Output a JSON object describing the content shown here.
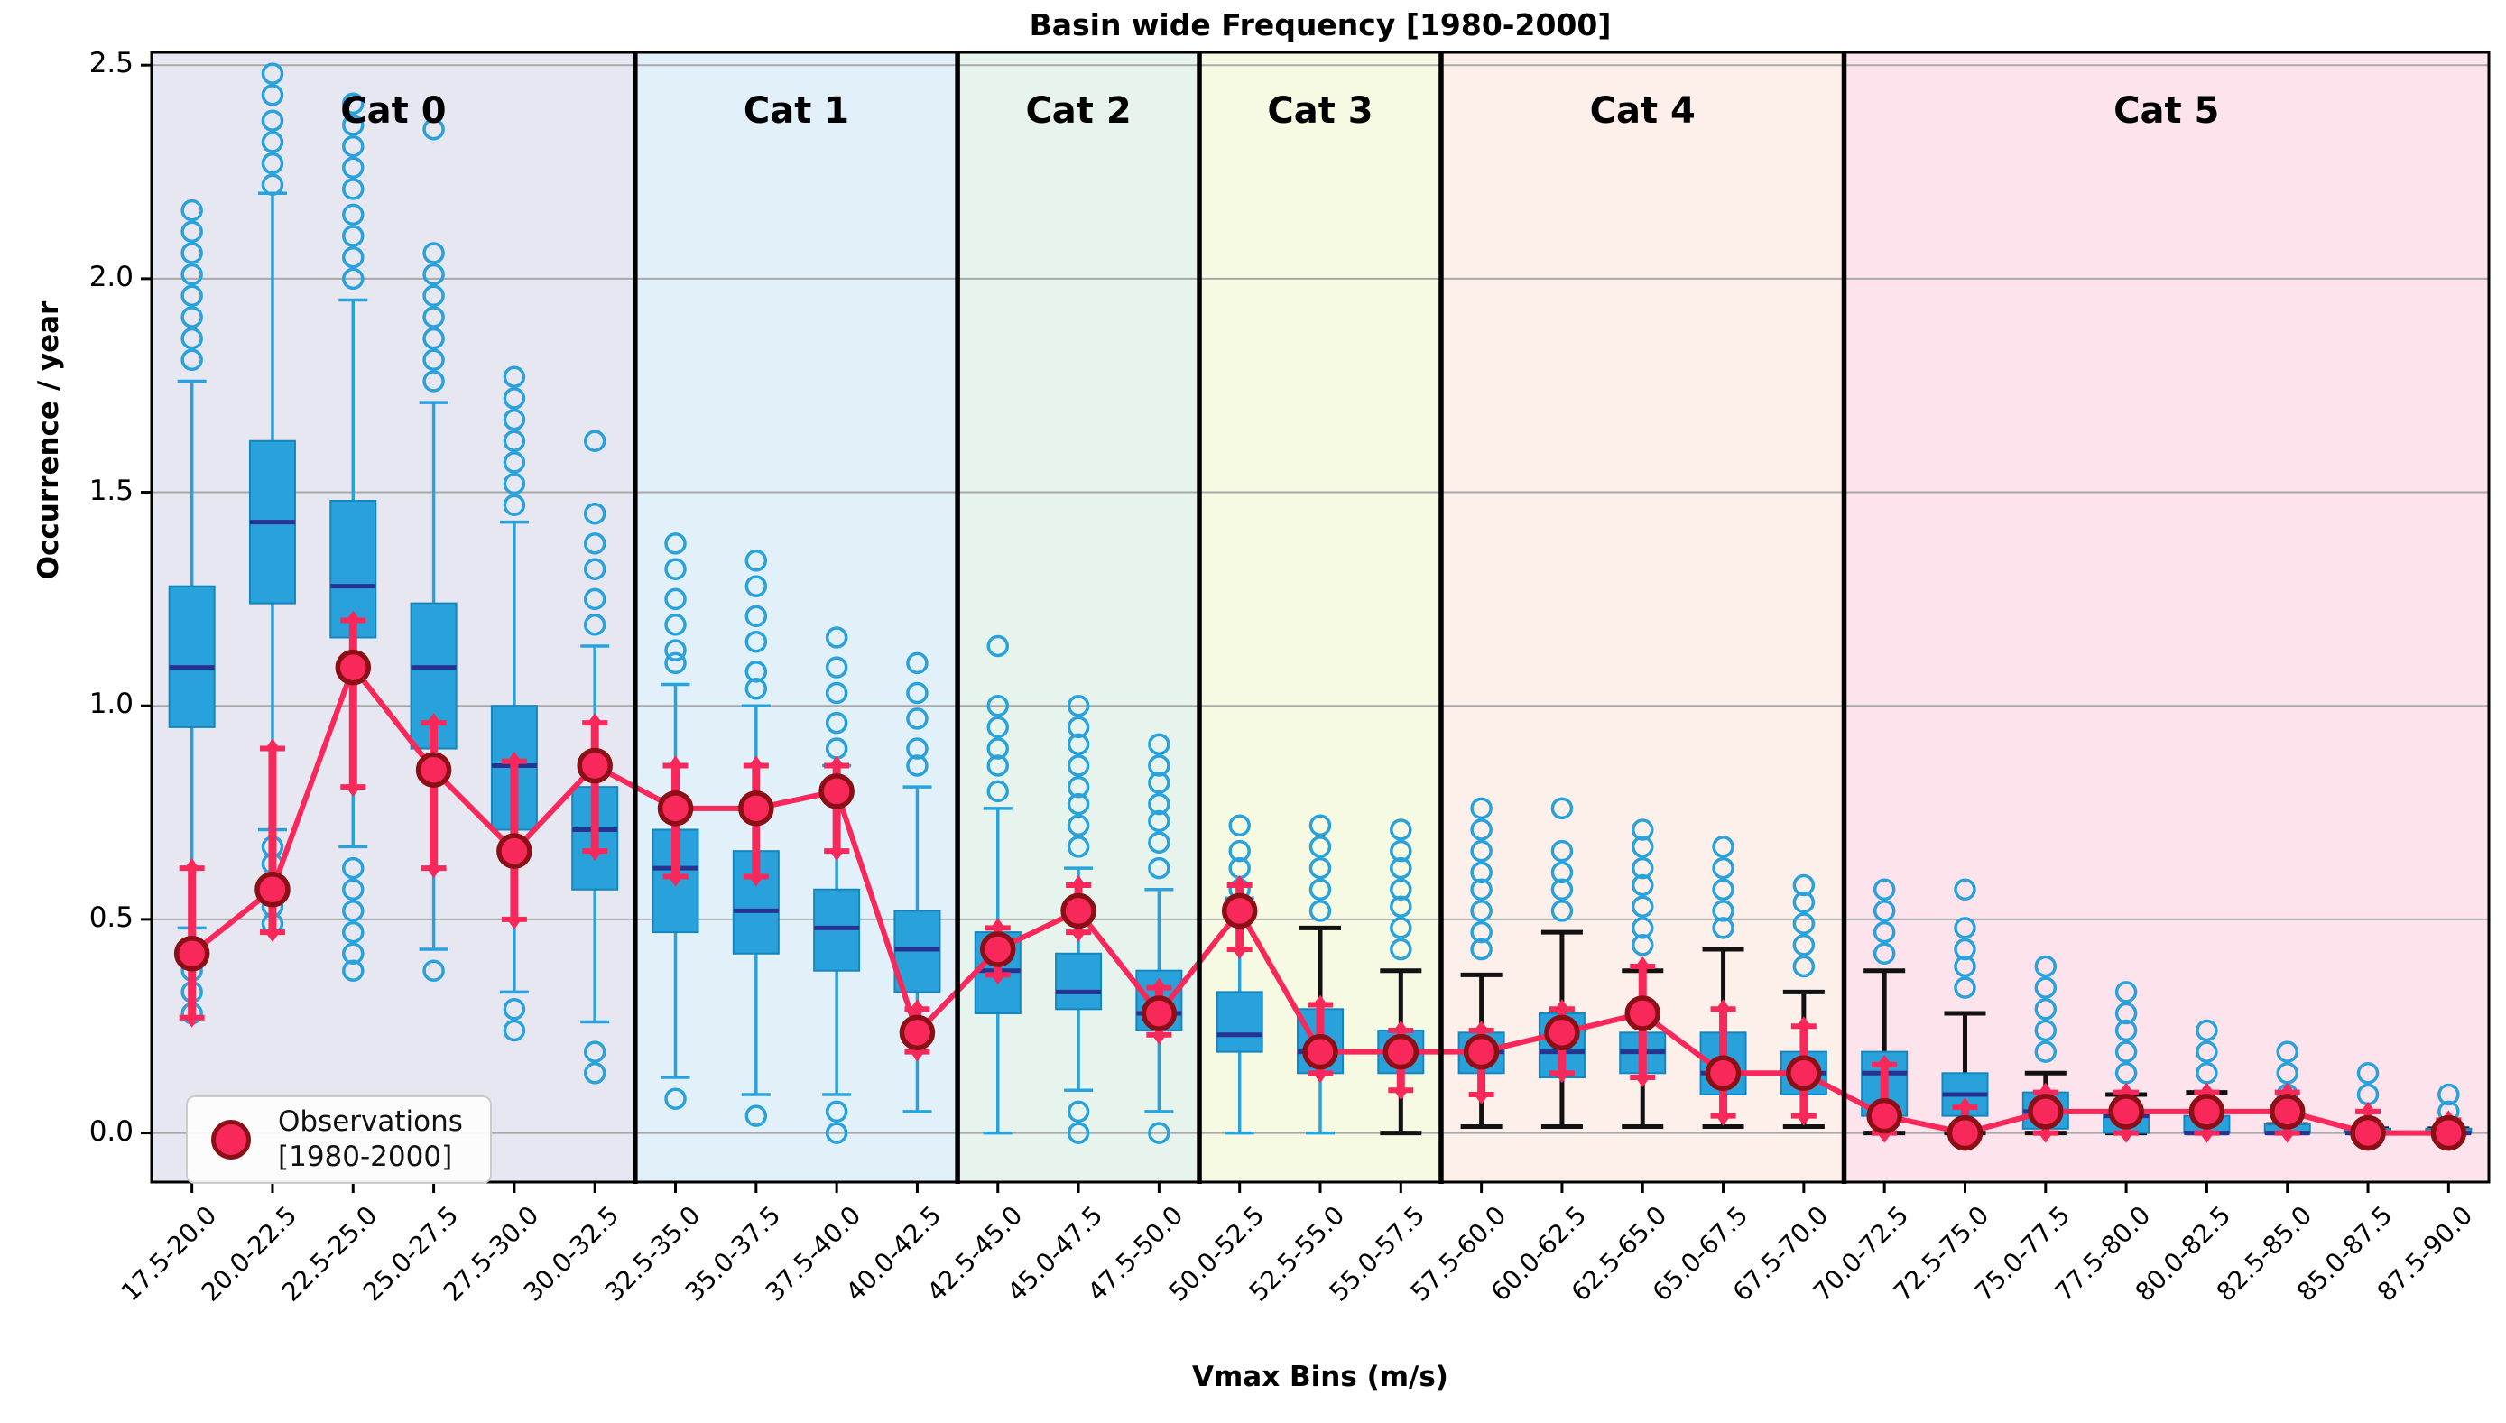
{
  "title": "Basin wide Frequency [1980-2000]",
  "ylabel": "Occurrence / year",
  "xlabel": "Vmax Bins (m/s)",
  "legend": {
    "line1": "Observations",
    "line2": "[1980-2000]"
  },
  "colors": {
    "figure_bg": "#ffffff",
    "grid": "#a9a9a9",
    "axis": "#000000",
    "box_fill": "#29a2dc",
    "box_edge": "#1486bf",
    "median": "#28328f",
    "whisker_blue": "#29a2dc",
    "whisker_black": "#111111",
    "outlier_edge": "#29a2dc",
    "obs_fill": "#f8285a",
    "obs_edge": "#8b0f15",
    "obs_line": "#f8285a",
    "band_divider": "#000000"
  },
  "chart_data": {
    "type": "box",
    "title": "Basin wide Frequency [1980-2000]",
    "xlabel": "Vmax Bins (m/s)",
    "ylabel": "Occurrence / year",
    "ylim": [
      -0.115,
      2.53
    ],
    "yticks": [
      "0.0",
      "0.5",
      "1.0",
      "1.5",
      "2.0",
      "2.5"
    ],
    "ytick_values": [
      0.0,
      0.5,
      1.0,
      1.5,
      2.0,
      2.5
    ],
    "grid": true,
    "legend_position": "lower left",
    "obs_series_name": "Observations [1980-2000]",
    "categories": [
      {
        "label": "Cat 0",
        "bins": 6,
        "color": "#e7e7f1"
      },
      {
        "label": "Cat 1",
        "bins": 4,
        "color": "#e2f0fa"
      },
      {
        "label": "Cat 2",
        "bins": 3,
        "color": "#e6f4ed"
      },
      {
        "label": "Cat 3",
        "bins": 3,
        "color": "#f7fae3"
      },
      {
        "label": "Cat 4",
        "bins": 5,
        "color": "#fdefea"
      },
      {
        "label": "Cat 5",
        "bins": 8,
        "color": "#fce3ec"
      }
    ],
    "bins": [
      {
        "label": "17.5-20.0",
        "whisker_low": 0.48,
        "q1": 0.95,
        "median": 1.09,
        "q3": 1.28,
        "whisker_high": 1.76,
        "outliers_high": [
          1.81,
          1.86,
          1.91,
          1.96,
          2.01,
          2.06,
          2.11,
          2.16
        ],
        "outliers_low": [
          0.28,
          0.33,
          0.38
        ],
        "obs": 0.42,
        "obs_err": [
          0.27,
          0.62
        ],
        "wt": "blue",
        "wb": "blue"
      },
      {
        "label": "20.0-22.5",
        "whisker_low": 0.71,
        "q1": 1.24,
        "median": 1.43,
        "q3": 1.62,
        "whisker_high": 2.2,
        "outliers_high": [
          2.22,
          2.27,
          2.32,
          2.37,
          2.43,
          2.48
        ],
        "outliers_low": [
          0.49,
          0.53,
          0.63,
          0.67
        ],
        "obs": 0.57,
        "obs_err": [
          0.47,
          0.9
        ],
        "wt": "blue",
        "wb": "blue"
      },
      {
        "label": "22.5-25.0",
        "whisker_low": 0.67,
        "q1": 1.16,
        "median": 1.28,
        "q3": 1.48,
        "whisker_high": 1.95,
        "outliers_high": [
          2.0,
          2.05,
          2.1,
          2.15,
          2.21,
          2.26,
          2.31,
          2.36,
          2.41
        ],
        "outliers_low": [
          0.38,
          0.42,
          0.47,
          0.52,
          0.57,
          0.62
        ],
        "obs": 1.09,
        "obs_err": [
          0.81,
          1.2
        ],
        "wt": "blue",
        "wb": "blue"
      },
      {
        "label": "25.0-27.5",
        "whisker_low": 0.43,
        "q1": 0.9,
        "median": 1.09,
        "q3": 1.24,
        "whisker_high": 1.71,
        "outliers_high": [
          1.76,
          1.81,
          1.86,
          1.91,
          1.96,
          2.01,
          2.06,
          2.35
        ],
        "outliers_low": [
          0.38
        ],
        "obs": 0.85,
        "obs_err": [
          0.62,
          0.96
        ],
        "wt": "blue",
        "wb": "blue"
      },
      {
        "label": "27.5-30.0",
        "whisker_low": 0.33,
        "q1": 0.71,
        "median": 0.86,
        "q3": 1.0,
        "whisker_high": 1.43,
        "outliers_high": [
          1.47,
          1.52,
          1.57,
          1.62,
          1.67,
          1.72,
          1.77
        ],
        "outliers_low": [
          0.24,
          0.29
        ],
        "obs": 0.66,
        "obs_err": [
          0.5,
          0.87
        ],
        "wt": "blue",
        "wb": "blue"
      },
      {
        "label": "30.0-32.5",
        "whisker_low": 0.26,
        "q1": 0.57,
        "median": 0.71,
        "q3": 0.81,
        "whisker_high": 1.14,
        "outliers_high": [
          1.19,
          1.25,
          1.32,
          1.38,
          1.45,
          1.62
        ],
        "outliers_low": [
          0.14,
          0.19
        ],
        "obs": 0.86,
        "obs_err": [
          0.66,
          0.96
        ],
        "wt": "blue",
        "wb": "blue"
      },
      {
        "label": "32.5-35.0",
        "whisker_low": 0.13,
        "q1": 0.47,
        "median": 0.62,
        "q3": 0.71,
        "whisker_high": 1.05,
        "outliers_high": [
          1.1,
          1.13,
          1.19,
          1.25,
          1.32,
          1.38
        ],
        "outliers_low": [
          0.08
        ],
        "obs": 0.76,
        "obs_err": [
          0.6,
          0.86
        ],
        "wt": "blue",
        "wb": "blue"
      },
      {
        "label": "35.0-37.5",
        "whisker_low": 0.09,
        "q1": 0.42,
        "median": 0.52,
        "q3": 0.66,
        "whisker_high": 1.0,
        "outliers_high": [
          1.04,
          1.08,
          1.15,
          1.21,
          1.28,
          1.34
        ],
        "outliers_low": [
          0.04
        ],
        "obs": 0.76,
        "obs_err": [
          0.6,
          0.86
        ],
        "wt": "blue",
        "wb": "blue"
      },
      {
        "label": "37.5-40.0",
        "whisker_low": 0.09,
        "q1": 0.38,
        "median": 0.48,
        "q3": 0.57,
        "whisker_high": 0.86,
        "outliers_high": [
          0.9,
          0.96,
          1.03,
          1.09,
          1.16
        ],
        "outliers_low": [
          0.0,
          0.05
        ],
        "obs": 0.8,
        "obs_err": [
          0.66,
          0.86
        ],
        "wt": "blue",
        "wb": "blue"
      },
      {
        "label": "40.0-42.5",
        "whisker_low": 0.05,
        "q1": 0.33,
        "median": 0.43,
        "q3": 0.52,
        "whisker_high": 0.81,
        "outliers_high": [
          0.86,
          0.9,
          0.97,
          1.03,
          1.1
        ],
        "outliers_low": [],
        "obs": 0.235,
        "obs_err": [
          0.19,
          0.29
        ],
        "wt": "blue",
        "wb": "blue"
      },
      {
        "label": "42.5-45.0",
        "whisker_low": 0.0,
        "q1": 0.28,
        "median": 0.38,
        "q3": 0.47,
        "whisker_high": 0.76,
        "outliers_high": [
          0.8,
          0.86,
          0.9,
          0.95,
          1.0,
          1.14
        ],
        "outliers_low": [],
        "obs": 0.43,
        "obs_err": [
          0.37,
          0.48
        ],
        "wt": "blue",
        "wb": "blue"
      },
      {
        "label": "45.0-47.5",
        "whisker_low": 0.1,
        "q1": 0.29,
        "median": 0.33,
        "q3": 0.42,
        "whisker_high": 0.62,
        "outliers_high": [
          0.67,
          0.72,
          0.77,
          0.81,
          0.86,
          0.91,
          0.95,
          1.0
        ],
        "outliers_low": [
          0.0,
          0.05
        ],
        "obs": 0.52,
        "obs_err": [
          0.47,
          0.58
        ],
        "wt": "blue",
        "wb": "blue"
      },
      {
        "label": "47.5-50.0",
        "whisker_low": 0.05,
        "q1": 0.24,
        "median": 0.28,
        "q3": 0.38,
        "whisker_high": 0.57,
        "outliers_high": [
          0.62,
          0.68,
          0.73,
          0.77,
          0.82,
          0.86,
          0.91
        ],
        "outliers_low": [
          0.0
        ],
        "obs": 0.28,
        "obs_err": [
          0.23,
          0.34
        ],
        "wt": "blue",
        "wb": "blue"
      },
      {
        "label": "50.0-52.5",
        "whisker_low": 0.0,
        "q1": 0.19,
        "median": 0.23,
        "q3": 0.33,
        "whisker_high": 0.55,
        "outliers_high": [
          0.57,
          0.62,
          0.66,
          0.72
        ],
        "outliers_low": [],
        "obs": 0.52,
        "obs_err": [
          0.43,
          0.58
        ],
        "wt": "blue",
        "wb": "blue"
      },
      {
        "label": "52.5-55.0",
        "whisker_low": 0.0,
        "q1": 0.14,
        "median": 0.19,
        "q3": 0.29,
        "whisker_high": 0.48,
        "outliers_high": [
          0.52,
          0.57,
          0.62,
          0.67,
          0.72
        ],
        "outliers_low": [],
        "obs": 0.19,
        "obs_err": [
          0.14,
          0.3
        ],
        "wt": "black",
        "wb": "blue"
      },
      {
        "label": "55.0-57.5",
        "whisker_low": 0.0,
        "q1": 0.14,
        "median": 0.19,
        "q3": 0.24,
        "whisker_high": 0.38,
        "outliers_high": [
          0.43,
          0.48,
          0.53,
          0.57,
          0.62,
          0.66,
          0.71
        ],
        "outliers_low": [],
        "obs": 0.19,
        "obs_err": [
          0.1,
          0.24
        ],
        "wt": "black",
        "wb": "black"
      },
      {
        "label": "57.5-60.0",
        "whisker_low": 0.015,
        "q1": 0.14,
        "median": 0.19,
        "q3": 0.235,
        "whisker_high": 0.37,
        "outliers_high": [
          0.43,
          0.47,
          0.52,
          0.57,
          0.61,
          0.66,
          0.71,
          0.76
        ],
        "outliers_low": [],
        "obs": 0.19,
        "obs_err": [
          0.09,
          0.24
        ],
        "wt": "black",
        "wb": "black"
      },
      {
        "label": "60.0-62.5",
        "whisker_low": 0.015,
        "q1": 0.13,
        "median": 0.19,
        "q3": 0.28,
        "whisker_high": 0.47,
        "outliers_high": [
          0.52,
          0.57,
          0.61,
          0.66,
          0.76
        ],
        "outliers_low": [],
        "obs": 0.235,
        "obs_err": [
          0.14,
          0.29
        ],
        "wt": "black",
        "wb": "black"
      },
      {
        "label": "62.5-65.0",
        "whisker_low": 0.015,
        "q1": 0.14,
        "median": 0.19,
        "q3": 0.235,
        "whisker_high": 0.38,
        "outliers_high": [
          0.44,
          0.48,
          0.53,
          0.58,
          0.62,
          0.67,
          0.71
        ],
        "outliers_low": [],
        "obs": 0.28,
        "obs_err": [
          0.13,
          0.39
        ],
        "wt": "black",
        "wb": "black"
      },
      {
        "label": "65.0-67.5",
        "whisker_low": 0.015,
        "q1": 0.09,
        "median": 0.14,
        "q3": 0.235,
        "whisker_high": 0.43,
        "outliers_high": [
          0.48,
          0.52,
          0.57,
          0.62,
          0.67
        ],
        "outliers_low": [],
        "obs": 0.14,
        "obs_err": [
          0.04,
          0.29
        ],
        "wt": "black",
        "wb": "black"
      },
      {
        "label": "67.5-70.0",
        "whisker_low": 0.015,
        "q1": 0.09,
        "median": 0.14,
        "q3": 0.19,
        "whisker_high": 0.33,
        "outliers_high": [
          0.39,
          0.44,
          0.49,
          0.54,
          0.58
        ],
        "outliers_low": [],
        "obs": 0.14,
        "obs_err": [
          0.04,
          0.25
        ],
        "wt": "black",
        "wb": "black"
      },
      {
        "label": "70.0-72.5",
        "whisker_low": 0.0,
        "q1": 0.04,
        "median": 0.14,
        "q3": 0.19,
        "whisker_high": 0.38,
        "outliers_high": [
          0.42,
          0.47,
          0.52,
          0.57
        ],
        "outliers_low": [],
        "obs": 0.04,
        "obs_err": [
          0.0,
          0.16
        ],
        "wt": "black",
        "wb": "black"
      },
      {
        "label": "72.5-75.0",
        "whisker_low": 0.0,
        "q1": 0.04,
        "median": 0.09,
        "q3": 0.14,
        "whisker_high": 0.28,
        "outliers_high": [
          0.34,
          0.39,
          0.43,
          0.48,
          0.57
        ],
        "outliers_low": [],
        "obs": 0.0,
        "obs_err": [
          0.0,
          0.06
        ],
        "wt": "black",
        "wb": "black"
      },
      {
        "label": "75.0-77.5",
        "whisker_low": 0.0,
        "q1": 0.01,
        "median": 0.05,
        "q3": 0.095,
        "whisker_high": 0.14,
        "outliers_high": [
          0.19,
          0.24,
          0.29,
          0.34,
          0.39
        ],
        "outliers_low": [],
        "obs": 0.05,
        "obs_err": [
          0.0,
          0.095
        ],
        "wt": "black",
        "wb": "black"
      },
      {
        "label": "77.5-80.0",
        "whisker_low": 0.0,
        "q1": 0.0,
        "median": 0.04,
        "q3": 0.05,
        "whisker_high": 0.09,
        "outliers_high": [
          0.14,
          0.19,
          0.24,
          0.28,
          0.33
        ],
        "outliers_low": [],
        "obs": 0.05,
        "obs_err": [
          0.0,
          0.095
        ],
        "wt": "black",
        "wb": "black"
      },
      {
        "label": "80.0-82.5",
        "whisker_low": 0.0,
        "q1": 0.0,
        "median": 0.0,
        "q3": 0.04,
        "whisker_high": 0.095,
        "outliers_high": [
          0.14,
          0.19,
          0.24
        ],
        "outliers_low": [],
        "obs": 0.05,
        "obs_err": [
          0.0,
          0.095
        ],
        "wt": "black",
        "wb": "black"
      },
      {
        "label": "82.5-85.0",
        "whisker_low": 0.0,
        "q1": 0.0,
        "median": 0.0,
        "q3": 0.02,
        "whisker_high": 0.02,
        "outliers_high": [
          0.09,
          0.14,
          0.19
        ],
        "outliers_low": [],
        "obs": 0.05,
        "obs_err": [
          0.0,
          0.095
        ],
        "wt": "black",
        "wb": "black"
      },
      {
        "label": "85.0-87.5",
        "whisker_low": 0.0,
        "q1": 0.0,
        "median": 0.0,
        "q3": 0.01,
        "whisker_high": 0.01,
        "outliers_high": [
          0.09,
          0.14
        ],
        "outliers_low": [],
        "obs": 0.0,
        "obs_err": [
          0.0,
          0.05
        ],
        "wt": "black",
        "wb": "black"
      },
      {
        "label": "87.5-90.0",
        "whisker_low": 0.0,
        "q1": 0.0,
        "median": 0.0,
        "q3": 0.01,
        "whisker_high": 0.01,
        "outliers_high": [
          0.05,
          0.09
        ],
        "outliers_low": [],
        "obs": 0.0,
        "obs_err": [
          0.0,
          0.03
        ],
        "wt": "black",
        "wb": "black"
      }
    ]
  }
}
